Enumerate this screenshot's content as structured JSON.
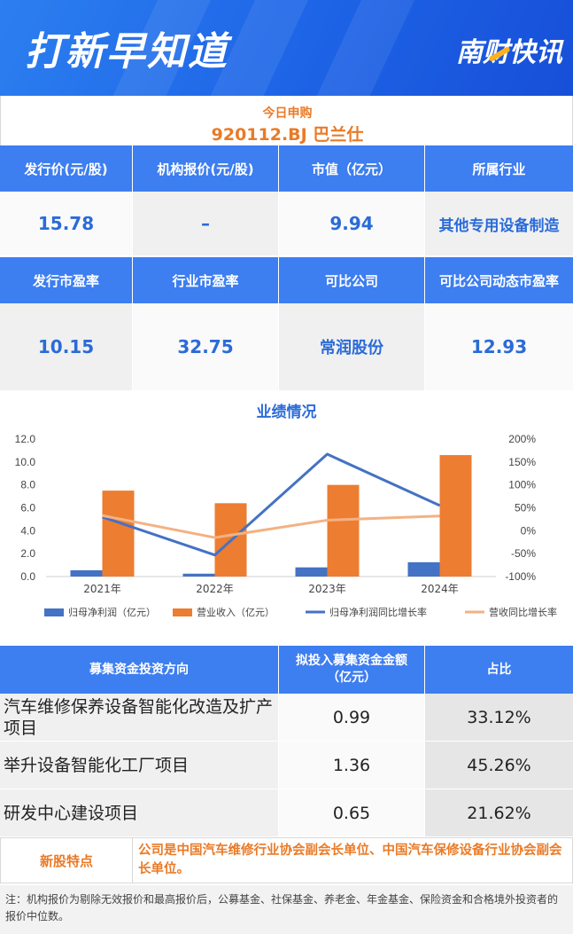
{
  "header": {
    "title": "打新早知道",
    "brand": "南财快讯"
  },
  "subscription": {
    "label": "今日申购",
    "code_name": "920112.BJ 巴兰仕"
  },
  "info_row1": {
    "headers": [
      "发行价(元/股)",
      "机构报价(元/股)",
      "市值（亿元）",
      "所属行业"
    ],
    "values": [
      "15.78",
      "–",
      "9.94",
      "其他专用设备制造"
    ]
  },
  "info_row2": {
    "headers": [
      "发行市盈率",
      "行业市盈率",
      "可比公司",
      "可比公司动态市盈率"
    ],
    "values": [
      "10.15",
      "32.75",
      "常润股份",
      "12.93"
    ]
  },
  "chart_title": "业绩情况",
  "chart_data": {
    "type": "bar",
    "categories": [
      "2021年",
      "2022年",
      "2023年",
      "2024年"
    ],
    "series": [
      {
        "name": "归母净利润（亿元）",
        "type": "bar",
        "axis": "left",
        "color": "#4472c4",
        "values": [
          0.55,
          0.25,
          0.8,
          1.25
        ]
      },
      {
        "name": "营业收入（亿元）",
        "type": "bar",
        "axis": "left",
        "color": "#ed7d31",
        "values": [
          7.5,
          6.4,
          8.0,
          10.6
        ]
      },
      {
        "name": "归母净利润同比增长率",
        "type": "line",
        "axis": "right",
        "color": "#4472c4",
        "values": [
          30,
          -53,
          167,
          55
        ]
      },
      {
        "name": "营收同比增长率",
        "type": "line",
        "axis": "right",
        "color": "#f4b183",
        "values": [
          33,
          -15,
          23,
          32
        ]
      }
    ],
    "ylim": [
      0,
      12
    ],
    "yticks": [
      "0.0",
      "2.0",
      "4.0",
      "6.0",
      "8.0",
      "10.0",
      "12.0"
    ],
    "y2lim": [
      -100,
      200
    ],
    "y2ticks": [
      "-100%",
      "-50%",
      "0%",
      "50%",
      "100%",
      "150%",
      "200%"
    ],
    "legend": "bottom"
  },
  "fund": {
    "headers": [
      "募集资金投资方向",
      "拟投入募集资金金额（亿元）",
      "占比"
    ],
    "rows": [
      {
        "name": "汽车维修保养设备智能化改造及扩产项目",
        "amount": "0.99",
        "pct": "33.12%"
      },
      {
        "name": "举升设备智能化工厂项目",
        "amount": "1.36",
        "pct": "45.26%"
      },
      {
        "name": "研发中心建设项目",
        "amount": "0.65",
        "pct": "21.62%"
      }
    ]
  },
  "feature": {
    "label": "新股特点",
    "text": "公司是中国汽车维修行业协会副会长单位、中国汽车保修设备行业协会副会长单位。"
  },
  "note": "注：机构报价为剔除无效报价和最高报价后，公募基金、社保基金、养老金、年金基金、保险资金和合格境外投资者的报价中位数。"
}
